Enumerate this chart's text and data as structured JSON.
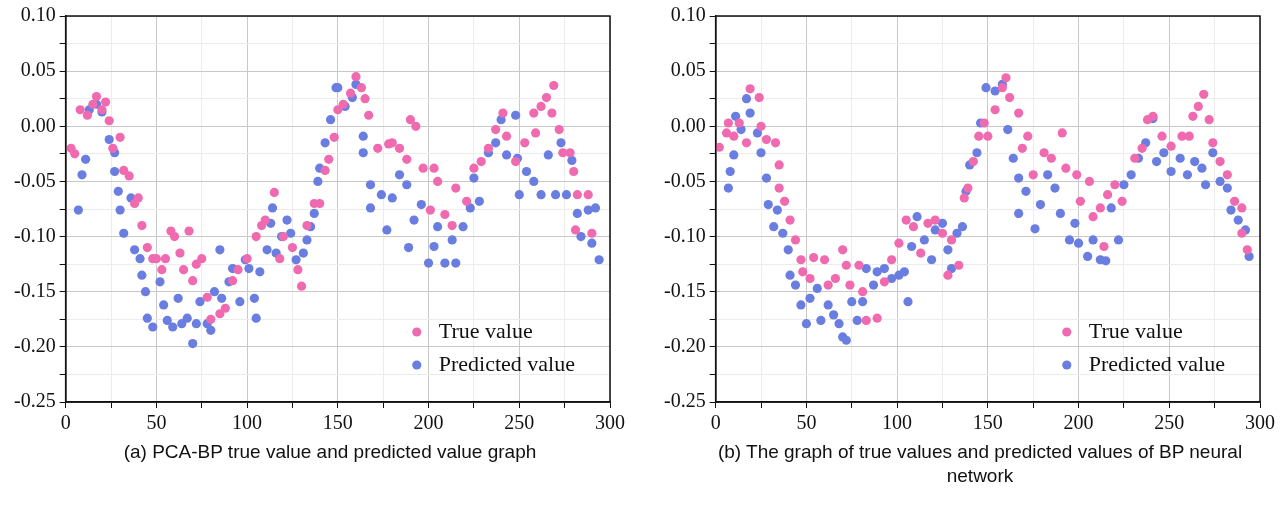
{
  "chart_data": [
    {
      "type": "scatter",
      "title": "(a) PCA-BP true value and predicted value graph",
      "xlim": [
        0,
        300
      ],
      "ylim": [
        -0.25,
        0.1
      ],
      "xticks": [
        0,
        {
          "value": 25,
          "label": null
        },
        50,
        {
          "value": 75,
          "label": null
        },
        100,
        {
          "value": 125,
          "label": null
        },
        150,
        {
          "value": 175,
          "label": null
        },
        200,
        {
          "value": 225,
          "label": null
        },
        250,
        {
          "value": 275,
          "label": null
        },
        300
      ],
      "yticks": [
        {
          "value": -0.25,
          "label": "-0.25"
        },
        {
          "value": -0.225,
          "label": null
        },
        {
          "value": -0.2,
          "label": "-0.20"
        },
        {
          "value": -0.175,
          "label": null
        },
        {
          "value": -0.15,
          "label": "-0.15"
        },
        {
          "value": -0.125,
          "label": null
        },
        {
          "value": -0.1,
          "label": "-0.10"
        },
        {
          "value": -0.075,
          "label": null
        },
        {
          "value": -0.05,
          "label": "-0.05"
        },
        {
          "value": -0.025,
          "label": null
        },
        {
          "value": 0,
          "label": "0.00"
        },
        {
          "value": 0.025,
          "label": null
        },
        {
          "value": 0.05,
          "label": "0.05"
        },
        {
          "value": 0.075,
          "label": null
        },
        {
          "value": 0.1,
          "label": "0.10"
        }
      ],
      "grid": true,
      "legend": "bottom right",
      "marker": "circle",
      "series": [
        {
          "name": "True value",
          "color": "#f06aaf",
          "x": [
            3,
            5,
            8,
            12,
            15,
            17,
            20,
            22,
            24,
            26,
            30,
            32,
            35,
            38,
            40,
            42,
            45,
            48,
            50,
            53,
            55,
            58,
            60,
            63,
            65,
            68,
            70,
            72,
            75,
            78,
            80,
            85,
            88,
            92,
            95,
            100,
            105,
            108,
            110,
            115,
            118,
            120,
            125,
            128,
            130,
            133,
            137,
            140,
            143,
            145,
            148,
            150,
            153,
            157,
            160,
            163,
            165,
            167,
            172,
            178,
            180,
            184,
            188,
            190,
            193,
            197,
            201,
            203,
            205,
            209,
            213,
            215,
            221,
            225,
            229,
            233,
            237,
            241,
            243,
            248,
            253,
            258,
            259,
            262,
            265,
            268,
            269,
            272,
            274,
            278,
            280,
            281,
            282,
            288,
            290
          ],
          "values": [
            -0.02,
            -0.025,
            0.015,
            0.01,
            0.02,
            0.027,
            0.015,
            0.022,
            0.005,
            -0.02,
            -0.01,
            -0.04,
            -0.045,
            -0.07,
            -0.065,
            -0.09,
            -0.11,
            -0.12,
            -0.12,
            -0.13,
            -0.12,
            -0.095,
            -0.1,
            -0.115,
            -0.13,
            -0.095,
            -0.14,
            -0.125,
            -0.12,
            -0.155,
            -0.175,
            -0.17,
            -0.165,
            -0.14,
            -0.13,
            -0.12,
            -0.1,
            -0.09,
            -0.085,
            -0.06,
            -0.12,
            -0.1,
            -0.11,
            -0.13,
            -0.145,
            -0.09,
            -0.07,
            -0.07,
            -0.04,
            -0.03,
            -0.01,
            0.015,
            0.02,
            0.03,
            0.045,
            0.035,
            0.025,
            0.01,
            -0.02,
            -0.016,
            -0.015,
            -0.02,
            -0.03,
            0.006,
            0.0,
            -0.038,
            -0.076,
            -0.038,
            -0.05,
            -0.08,
            -0.09,
            -0.056,
            -0.068,
            -0.038,
            -0.032,
            -0.02,
            -0.003,
            0.012,
            -0.009,
            -0.032,
            -0.015,
            0.012,
            -0.006,
            0.018,
            0.026,
            0.012,
            0.037,
            -0.003,
            -0.024,
            -0.024,
            -0.041,
            -0.094,
            -0.062,
            -0.062,
            -0.097
          ]
        },
        {
          "name": "Predicted value",
          "color": "#6a7de0",
          "x": [
            7,
            9,
            11,
            13,
            17,
            20,
            24,
            27,
            27,
            29,
            30,
            32,
            36,
            38,
            41,
            42,
            44,
            45,
            48,
            52,
            54,
            56,
            59,
            62,
            64,
            67,
            70,
            72,
            74,
            78,
            80,
            82,
            85,
            86,
            90,
            92,
            96,
            99,
            101,
            104,
            105,
            107,
            111,
            113,
            114,
            116,
            119,
            122,
            124,
            127,
            131,
            133,
            135,
            137,
            139,
            140,
            143,
            146,
            149,
            150,
            154,
            158,
            160,
            164,
            164,
            168,
            168,
            174,
            177,
            180,
            184,
            188,
            189,
            192,
            196,
            200,
            203,
            205,
            209,
            213,
            215,
            219,
            223,
            225,
            228,
            233,
            237,
            240,
            243,
            248,
            249,
            250,
            254,
            258,
            262,
            266,
            270,
            273,
            276,
            279,
            282,
            284,
            288,
            290,
            292,
            294
          ],
          "values": [
            -0.076,
            -0.044,
            -0.03,
            0.015,
            0.02,
            0.013,
            -0.012,
            -0.024,
            -0.041,
            -0.059,
            -0.076,
            -0.097,
            -0.065,
            -0.112,
            -0.12,
            -0.135,
            -0.15,
            -0.174,
            -0.182,
            -0.141,
            -0.162,
            -0.176,
            -0.182,
            -0.156,
            -0.179,
            -0.174,
            -0.197,
            -0.179,
            -0.159,
            -0.179,
            -0.185,
            -0.15,
            -0.112,
            -0.156,
            -0.141,
            -0.129,
            -0.159,
            -0.121,
            -0.129,
            -0.156,
            -0.174,
            -0.132,
            -0.112,
            -0.088,
            -0.074,
            -0.115,
            -0.1,
            -0.085,
            -0.097,
            -0.121,
            -0.115,
            -0.103,
            -0.091,
            -0.079,
            -0.05,
            -0.038,
            -0.015,
            0.006,
            0.035,
            0.035,
            0.018,
            0.026,
            0.038,
            -0.009,
            -0.024,
            -0.053,
            -0.074,
            -0.062,
            -0.094,
            -0.065,
            -0.044,
            -0.053,
            -0.11,
            -0.085,
            -0.071,
            -0.124,
            -0.109,
            -0.091,
            -0.124,
            -0.103,
            -0.124,
            -0.091,
            -0.074,
            -0.047,
            -0.068,
            -0.024,
            -0.015,
            0.006,
            -0.026,
            0.01,
            -0.029,
            -0.062,
            -0.041,
            -0.05,
            -0.062,
            -0.026,
            -0.062,
            -0.015,
            -0.062,
            -0.031,
            -0.079,
            -0.1,
            -0.076,
            -0.106,
            -0.074,
            -0.121
          ]
        }
      ]
    },
    {
      "type": "scatter",
      "title": "(b) The graph of true values and predicted values of BP neural network",
      "xlim": [
        0,
        300
      ],
      "ylim": [
        -0.25,
        0.1
      ],
      "xticks": [
        0,
        {
          "value": 25,
          "label": null
        },
        50,
        {
          "value": 75,
          "label": null
        },
        100,
        {
          "value": 125,
          "label": null
        },
        150,
        {
          "value": 175,
          "label": null
        },
        200,
        {
          "value": 225,
          "label": null
        },
        250,
        {
          "value": 275,
          "label": null
        },
        300
      ],
      "yticks": [
        {
          "value": -0.25,
          "label": "-0.25"
        },
        {
          "value": -0.225,
          "label": null
        },
        {
          "value": -0.2,
          "label": "-0.20"
        },
        {
          "value": -0.175,
          "label": null
        },
        {
          "value": -0.15,
          "label": "-0.15"
        },
        {
          "value": -0.125,
          "label": null
        },
        {
          "value": -0.1,
          "label": "-0.10"
        },
        {
          "value": -0.075,
          "label": null
        },
        {
          "value": -0.05,
          "label": "-0.05"
        },
        {
          "value": -0.025,
          "label": null
        },
        {
          "value": 0,
          "label": "0.00"
        },
        {
          "value": 0.025,
          "label": null
        },
        {
          "value": 0.05,
          "label": "0.05"
        },
        {
          "value": 0.075,
          "label": null
        },
        {
          "value": 0.1,
          "label": "0.10"
        }
      ],
      "grid": true,
      "legend": "bottom right",
      "marker": "circle",
      "series": [
        {
          "name": "True value",
          "color": "#f06aaf",
          "x": [
            2,
            6,
            7,
            10,
            13,
            17,
            19,
            24,
            25,
            28,
            33,
            35,
            35,
            38,
            41,
            44,
            47,
            48,
            52,
            54,
            60,
            62,
            66,
            70,
            72,
            74,
            79,
            81,
            83,
            89,
            93,
            97,
            101,
            105,
            109,
            113,
            117,
            121,
            125,
            128,
            130,
            134,
            137,
            139,
            142,
            145,
            148,
            150,
            154,
            158,
            160,
            162,
            167,
            169,
            172,
            175,
            181,
            185,
            191,
            193,
            199,
            201,
            206,
            208,
            212,
            214,
            216,
            220,
            224,
            231,
            235,
            238,
            241,
            246,
            251,
            257,
            261,
            263,
            266,
            269,
            272,
            274,
            278,
            282,
            286,
            290,
            290,
            293
          ],
          "values": [
            -0.019,
            -0.006,
            0.003,
            -0.009,
            0.003,
            -0.015,
            0.034,
            0.026,
            0.0,
            -0.012,
            -0.015,
            -0.035,
            -0.056,
            -0.068,
            -0.085,
            -0.103,
            -0.121,
            -0.132,
            -0.138,
            -0.119,
            -0.121,
            -0.144,
            -0.138,
            -0.112,
            -0.126,
            -0.144,
            -0.126,
            -0.15,
            -0.176,
            -0.174,
            -0.141,
            -0.121,
            -0.106,
            -0.085,
            -0.091,
            -0.115,
            -0.088,
            -0.085,
            -0.097,
            -0.135,
            -0.103,
            -0.126,
            -0.065,
            -0.056,
            -0.032,
            -0.009,
            0.003,
            -0.009,
            0.015,
            0.035,
            0.044,
            0.026,
            0.012,
            -0.02,
            -0.009,
            -0.044,
            -0.024,
            -0.029,
            -0.006,
            -0.038,
            -0.044,
            -0.068,
            -0.05,
            -0.082,
            -0.074,
            -0.109,
            -0.062,
            -0.053,
            -0.068,
            -0.029,
            -0.02,
            0.006,
            0.009,
            -0.009,
            -0.018,
            -0.009,
            -0.009,
            0.009,
            0.018,
            0.029,
            0.006,
            -0.015,
            -0.032,
            -0.044,
            -0.068,
            -0.074,
            -0.097,
            -0.112
          ]
        },
        {
          "name": "Predicted value",
          "color": "#6a7de0",
          "x": [
            7,
            8,
            10,
            11,
            14,
            17,
            19,
            23,
            25,
            28,
            29,
            32,
            34,
            37,
            40,
            41,
            44,
            47,
            50,
            52,
            56,
            58,
            62,
            65,
            68,
            70,
            72,
            75,
            78,
            81,
            83,
            87,
            89,
            93,
            97,
            101,
            104,
            106,
            108,
            111,
            115,
            119,
            121,
            125,
            128,
            130,
            133,
            136,
            138,
            140,
            144,
            146,
            149,
            154,
            158,
            161,
            164,
            167,
            167,
            171,
            176,
            179,
            183,
            187,
            190,
            195,
            198,
            200,
            205,
            208,
            212,
            215,
            218,
            222,
            225,
            229,
            233,
            237,
            241,
            243,
            247,
            251,
            256,
            260,
            264,
            268,
            270,
            274,
            278,
            282,
            284,
            288,
            292,
            294
          ],
          "values": [
            -0.056,
            -0.041,
            -0.026,
            0.009,
            -0.003,
            0.025,
            0.012,
            -0.006,
            -0.024,
            -0.047,
            -0.071,
            -0.091,
            -0.076,
            -0.097,
            -0.112,
            -0.135,
            -0.144,
            -0.162,
            -0.179,
            -0.156,
            -0.147,
            -0.176,
            -0.162,
            -0.171,
            -0.179,
            -0.191,
            -0.194,
            -0.159,
            -0.176,
            -0.159,
            -0.129,
            -0.144,
            -0.132,
            -0.129,
            -0.138,
            -0.135,
            -0.132,
            -0.159,
            -0.109,
            -0.082,
            -0.103,
            -0.121,
            -0.094,
            -0.088,
            -0.112,
            -0.129,
            -0.097,
            -0.091,
            -0.059,
            -0.035,
            -0.024,
            0.003,
            0.035,
            0.032,
            0.038,
            -0.003,
            -0.029,
            -0.047,
            -0.079,
            -0.059,
            -0.093,
            -0.071,
            -0.044,
            -0.056,
            -0.079,
            -0.103,
            -0.088,
            -0.106,
            -0.118,
            -0.103,
            -0.121,
            -0.122,
            -0.074,
            -0.103,
            -0.053,
            -0.044,
            -0.029,
            -0.015,
            0.007,
            -0.032,
            -0.024,
            -0.041,
            -0.029,
            -0.044,
            -0.032,
            -0.038,
            -0.053,
            -0.024,
            -0.05,
            -0.056,
            -0.076,
            -0.085,
            -0.094,
            -0.118
          ]
        }
      ]
    }
  ]
}
